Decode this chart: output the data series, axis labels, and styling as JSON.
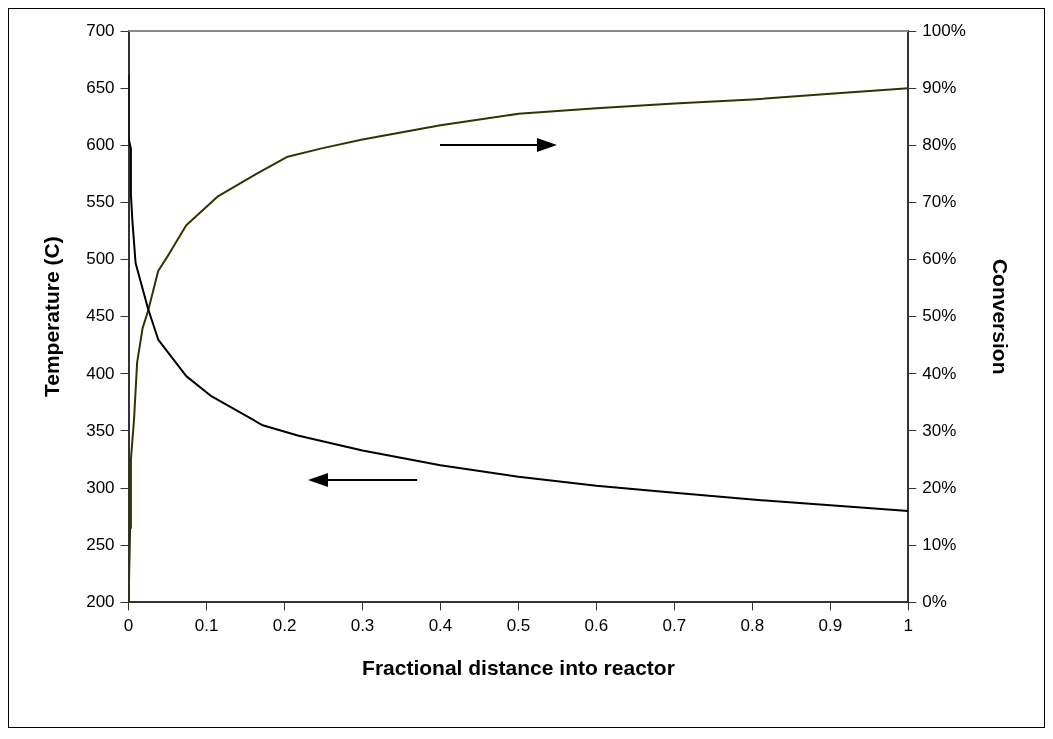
{
  "chart_data": {
    "type": "line",
    "xlabel": "Fractional distance into reactor",
    "ylabel": "Temperature (C)",
    "y2label": "Conversion",
    "xlim": [
      0,
      1
    ],
    "xticks": [
      0,
      0.1,
      0.2,
      0.3,
      0.4,
      0.5,
      0.6,
      0.7,
      0.8,
      0.9,
      1
    ],
    "ylim": [
      200,
      700
    ],
    "yticks": [
      200,
      250,
      300,
      350,
      400,
      450,
      500,
      550,
      600,
      650,
      700
    ],
    "y2lim": [
      0,
      100
    ],
    "y2ticks": [
      {
        "value": 0,
        "label": "0%"
      },
      {
        "value": 10,
        "label": "10%"
      },
      {
        "value": 20,
        "label": "20%"
      },
      {
        "value": 30,
        "label": "30%"
      },
      {
        "value": 40,
        "label": "40%"
      },
      {
        "value": 50,
        "label": "50%"
      },
      {
        "value": 60,
        "label": "60%"
      },
      {
        "value": 70,
        "label": "70%"
      },
      {
        "value": 80,
        "label": "80%"
      },
      {
        "value": 90,
        "label": "90%"
      },
      {
        "value": 100,
        "label": "100%"
      }
    ],
    "grid": false,
    "legend": false,
    "marker": "none",
    "line_style": "solid",
    "series": [
      {
        "color": "#000000",
        "x": [
          0,
          0,
          0.003,
          0.003,
          0.005,
          0.009,
          0.025,
          0.038,
          0.074,
          0.105,
          0.172,
          0.217,
          0.3,
          0.4,
          0.5,
          0.6,
          0.7,
          0.8,
          0.9,
          1
        ],
        "values": [
          661,
          606,
          597,
          557,
          533,
          497,
          457,
          430,
          398,
          381,
          355,
          346,
          333,
          320,
          310,
          302,
          296,
          290,
          285,
          280
        ]
      },
      {
        "color": "#333300",
        "axis": "y2",
        "x": [
          0,
          0.002,
          0.003,
          0.007,
          0.009,
          0.011,
          0.018,
          0.025,
          0.038,
          0.052,
          0.074,
          0.114,
          0.164,
          0.204,
          0.249,
          0.3,
          0.4,
          0.5,
          0.6,
          0.7,
          0.8,
          0.9,
          1
        ],
        "values": [
          0,
          13,
          25,
          32,
          37,
          42,
          48,
          51,
          58,
          61,
          66,
          71,
          75,
          78,
          79.5,
          81,
          83.5,
          85.5,
          86.5,
          87.3,
          88,
          89,
          90
        ]
      }
    ]
  }
}
